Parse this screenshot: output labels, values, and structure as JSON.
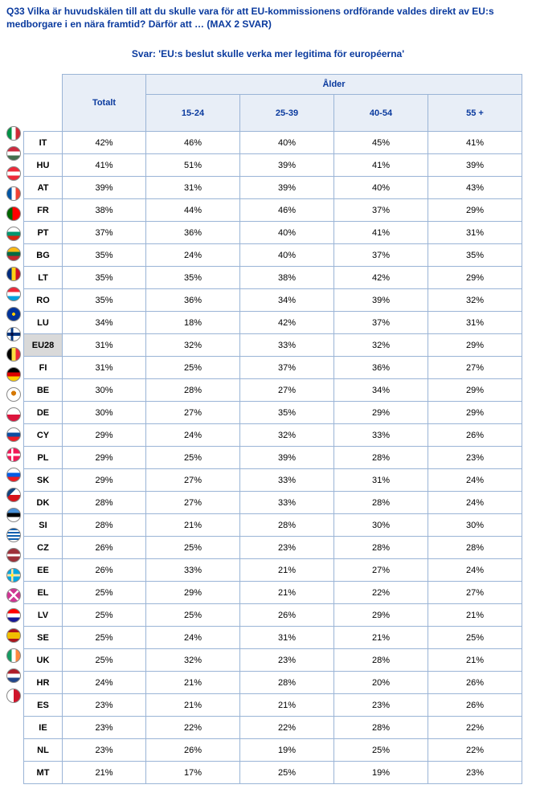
{
  "question": "Q33 Vilka är huvudskälen till att du skulle vara för att EU-kommissionens ordförande valdes direkt av EU:s medborgare i en nära framtid? Därför att … (MAX 2 SVAR)",
  "answer": "Svar: 'EU:s beslut skulle verka mer legitima för européerna'",
  "headers": {
    "total": "Totalt",
    "age": "Ålder",
    "cols": [
      "15-24",
      "25-39",
      "40-54",
      "55 +"
    ]
  },
  "rows": [
    {
      "code": "IT",
      "flag": "linear-gradient(90deg,#009246 33%,#fff 33% 66%,#ce2b37 66%)",
      "v": [
        "42%",
        "46%",
        "40%",
        "45%",
        "41%"
      ]
    },
    {
      "code": "HU",
      "flag": "linear-gradient(#cd2a3e 33%,#fff 33% 66%,#436f4d 66%)",
      "v": [
        "41%",
        "51%",
        "39%",
        "41%",
        "39%"
      ]
    },
    {
      "code": "AT",
      "flag": "linear-gradient(#ed2939 33%,#fff 33% 66%,#ed2939 66%)",
      "v": [
        "39%",
        "31%",
        "39%",
        "40%",
        "43%"
      ]
    },
    {
      "code": "FR",
      "flag": "linear-gradient(90deg,#0055a4 33%,#fff 33% 66%,#ef4135 66%)",
      "v": [
        "38%",
        "44%",
        "46%",
        "37%",
        "29%"
      ]
    },
    {
      "code": "PT",
      "flag": "linear-gradient(90deg,#006600 40%,#ff0000 40%)",
      "v": [
        "37%",
        "36%",
        "40%",
        "41%",
        "31%"
      ]
    },
    {
      "code": "BG",
      "flag": "linear-gradient(#fff 33%,#00966e 33% 66%,#d62612 66%)",
      "v": [
        "35%",
        "24%",
        "40%",
        "37%",
        "35%"
      ]
    },
    {
      "code": "LT",
      "flag": "linear-gradient(#fdb913 33%,#006a44 33% 66%,#c1272d 66%)",
      "v": [
        "35%",
        "35%",
        "38%",
        "42%",
        "29%"
      ]
    },
    {
      "code": "RO",
      "flag": "linear-gradient(90deg,#002b7f 33%,#fcd116 33% 66%,#ce1126 66%)",
      "v": [
        "35%",
        "36%",
        "34%",
        "39%",
        "32%"
      ]
    },
    {
      "code": "LU",
      "flag": "linear-gradient(#ed2939 33%,#fff 33% 66%,#00a1de 66%)",
      "v": [
        "34%",
        "18%",
        "42%",
        "37%",
        "31%"
      ]
    },
    {
      "code": "EU28",
      "flag": "radial-gradient(circle,#ffcc00 2px,#003399 2px)",
      "hl": true,
      "v": [
        "31%",
        "32%",
        "33%",
        "32%",
        "29%"
      ]
    },
    {
      "code": "FI",
      "flag": "linear-gradient(#fff 38%,#003580 38% 62%,#fff 62%),linear-gradient(90deg,#fff 28%,#003580 28% 48%,#fff 48%)",
      "bgblend": "multiply",
      "v": [
        "31%",
        "25%",
        "37%",
        "36%",
        "27%"
      ]
    },
    {
      "code": "BE",
      "flag": "linear-gradient(90deg,#000 33%,#fae042 33% 66%,#ed2939 66%)",
      "v": [
        "30%",
        "28%",
        "27%",
        "34%",
        "29%"
      ]
    },
    {
      "code": "DE",
      "flag": "linear-gradient(#000 33%,#dd0000 33% 66%,#ffce00 66%)",
      "v": [
        "30%",
        "27%",
        "35%",
        "29%",
        "29%"
      ]
    },
    {
      "code": "CY",
      "flag": "radial-gradient(circle at 50% 40%,#d57800 3px,#fff 3px)",
      "v": [
        "29%",
        "24%",
        "32%",
        "33%",
        "26%"
      ]
    },
    {
      "code": "PL",
      "flag": "linear-gradient(#fff 50%,#dc143c 50%)",
      "v": [
        "29%",
        "25%",
        "39%",
        "28%",
        "23%"
      ]
    },
    {
      "code": "SK",
      "flag": "linear-gradient(#fff 33%,#0b4ea2 33% 66%,#ee1c25 66%)",
      "v": [
        "29%",
        "27%",
        "33%",
        "31%",
        "24%"
      ]
    },
    {
      "code": "DK",
      "flag": "linear-gradient(#c60c30 40%,#fff 40% 60%,#c60c30 60%),linear-gradient(90deg,#c60c30 30%,#fff 30% 46%,#c60c30 46%)",
      "bgblend": "screen",
      "v": [
        "28%",
        "27%",
        "33%",
        "28%",
        "24%"
      ]
    },
    {
      "code": "SI",
      "flag": "linear-gradient(#fff 33%,#005ce5 33% 66%,#ed1c24 66%)",
      "v": [
        "28%",
        "21%",
        "28%",
        "30%",
        "30%"
      ]
    },
    {
      "code": "CZ",
      "flag": "linear-gradient(135deg,#11457e 35%,transparent 35%),linear-gradient(#fff 50%,#d7141a 50%)",
      "v": [
        "26%",
        "25%",
        "23%",
        "28%",
        "28%"
      ]
    },
    {
      "code": "EE",
      "flag": "linear-gradient(#4891d9 33%,#000 33% 66%,#fff 66%)",
      "v": [
        "26%",
        "33%",
        "21%",
        "27%",
        "24%"
      ]
    },
    {
      "code": "EL",
      "flag": "repeating-linear-gradient(#0d5eaf 0 2px,#fff 2px 4px)",
      "v": [
        "25%",
        "29%",
        "21%",
        "22%",
        "27%"
      ]
    },
    {
      "code": "LV",
      "flag": "linear-gradient(#9e3039 40%,#fff 40% 60%,#9e3039 60%)",
      "v": [
        "25%",
        "25%",
        "26%",
        "29%",
        "21%"
      ]
    },
    {
      "code": "SE",
      "flag": "linear-gradient(#006aa7 40%,#fecc00 40% 60%,#006aa7 60%),linear-gradient(90deg,#006aa7 30%,#fecc00 30% 46%,#006aa7 46%)",
      "bgblend": "screen",
      "v": [
        "25%",
        "24%",
        "31%",
        "21%",
        "25%"
      ]
    },
    {
      "code": "UK",
      "flag": "linear-gradient(45deg,#cf142b 45%,#fff 45% 55%,#cf142b 55%),linear-gradient(-45deg,#00247d 45%,#fff 45% 55%,#00247d 55%)",
      "bgblend": "screen",
      "v": [
        "25%",
        "32%",
        "23%",
        "28%",
        "21%"
      ]
    },
    {
      "code": "HR",
      "flag": "linear-gradient(#ff0000 33%,#fff 33% 66%,#171796 66%)",
      "v": [
        "24%",
        "21%",
        "28%",
        "20%",
        "26%"
      ]
    },
    {
      "code": "ES",
      "flag": "linear-gradient(#aa151b 25%,#f1bf00 25% 75%,#aa151b 75%)",
      "v": [
        "23%",
        "21%",
        "21%",
        "23%",
        "26%"
      ]
    },
    {
      "code": "IE",
      "flag": "linear-gradient(90deg,#169b62 33%,#fff 33% 66%,#ff883e 66%)",
      "v": [
        "23%",
        "22%",
        "22%",
        "28%",
        "22%"
      ]
    },
    {
      "code": "NL",
      "flag": "linear-gradient(#ae1c28 33%,#fff 33% 66%,#21468b 66%)",
      "v": [
        "23%",
        "26%",
        "19%",
        "25%",
        "22%"
      ]
    },
    {
      "code": "MT",
      "flag": "linear-gradient(90deg,#fff 50%,#cf142b 50%)",
      "v": [
        "21%",
        "17%",
        "25%",
        "19%",
        "23%"
      ]
    }
  ]
}
